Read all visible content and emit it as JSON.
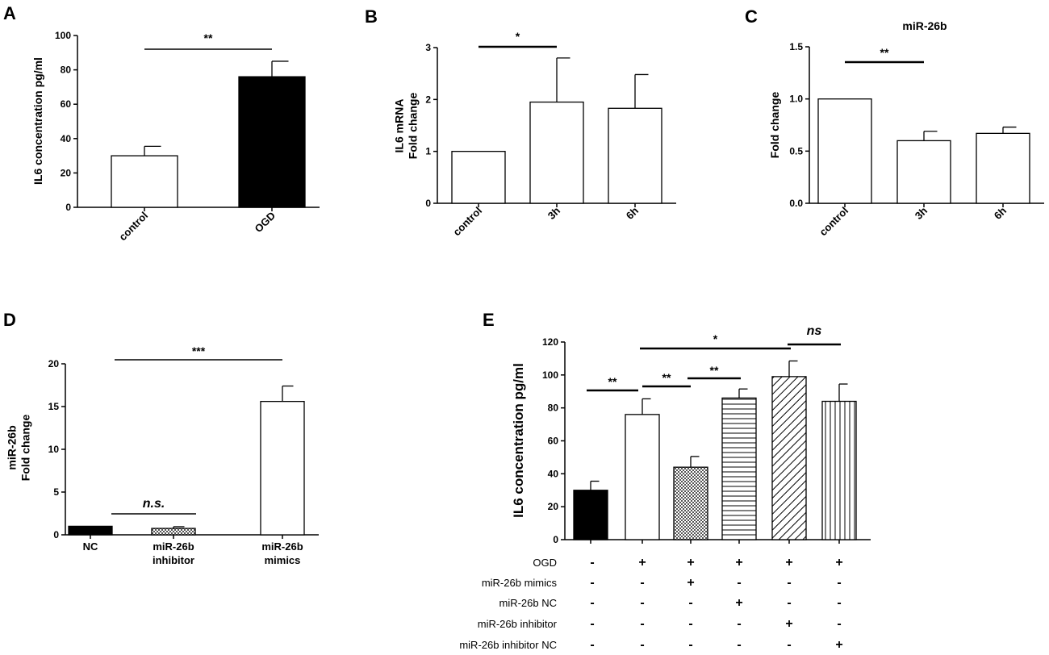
{
  "chart_data": [
    {
      "panel": "A",
      "type": "bar",
      "title": "",
      "ylabel": "IL6 concentration pg/ml",
      "xlabel": "",
      "ylim": [
        0,
        100
      ],
      "yticks": [
        "0",
        "20",
        "40",
        "60",
        "80",
        "100"
      ],
      "categories": [
        "control",
        "OGD"
      ],
      "values": [
        30,
        76
      ],
      "errors": [
        5.5,
        9
      ],
      "fills": [
        "white",
        "black"
      ],
      "significance": [
        {
          "from": 0,
          "to": 1,
          "label": "**"
        }
      ]
    },
    {
      "panel": "B",
      "type": "bar",
      "title": "",
      "ylabel": [
        "IL6 mRNA",
        "Fold change"
      ],
      "xlabel": "",
      "ylim": [
        0,
        3
      ],
      "yticks": [
        "0",
        "1",
        "2",
        "3"
      ],
      "categories": [
        "control",
        "3h",
        "6h"
      ],
      "values": [
        1.0,
        1.95,
        1.83
      ],
      "errors": [
        0,
        0.85,
        0.65
      ],
      "fills": [
        "white",
        "white",
        "white"
      ],
      "significance": [
        {
          "from": 0,
          "to": 1,
          "label": "*"
        }
      ]
    },
    {
      "panel": "C",
      "type": "bar",
      "title": "miR-26b",
      "ylabel": "Fold change",
      "xlabel": "",
      "ylim": [
        0,
        1.5
      ],
      "yticks": [
        "0.0",
        "0.5",
        "1.0",
        "1.5"
      ],
      "categories": [
        "control",
        "3h",
        "6h"
      ],
      "values": [
        1.0,
        0.6,
        0.67
      ],
      "errors": [
        0,
        0.09,
        0.06
      ],
      "fills": [
        "white",
        "white",
        "white"
      ],
      "significance": [
        {
          "from": 0,
          "to": 1,
          "label": "**"
        }
      ]
    },
    {
      "panel": "D",
      "type": "bar",
      "title": "",
      "ylabel": [
        "miR-26b",
        "Fold change"
      ],
      "xlabel": "",
      "ylim": [
        0,
        20
      ],
      "yticks": [
        "0",
        "5",
        "10",
        "15",
        "20"
      ],
      "categories": [
        [
          "NC"
        ],
        [
          "miR-26b",
          "inhibitor"
        ],
        [
          "miR-26b",
          "mimics"
        ]
      ],
      "values": [
        1.0,
        0.75,
        15.6
      ],
      "errors": [
        0,
        0.2,
        1.8
      ],
      "fills": [
        "black",
        "checker",
        "white"
      ],
      "significance": [
        {
          "from": 0,
          "to": 1,
          "label": "n.s.",
          "italic": true
        },
        {
          "from": 0,
          "to": 2,
          "label": "***"
        }
      ]
    },
    {
      "panel": "E",
      "type": "bar",
      "title": "",
      "ylabel": "IL6 concentration pg/ml",
      "xlabel": "",
      "ylim": [
        0,
        120
      ],
      "yticks": [
        "0",
        "20",
        "40",
        "60",
        "80",
        "100",
        "120"
      ],
      "values": [
        30,
        76,
        44,
        86,
        99,
        84
      ],
      "errors": [
        5.5,
        9.5,
        6.5,
        5.5,
        9.5,
        10.5
      ],
      "fills": [
        "black",
        "white",
        "checker",
        "hlines",
        "diag",
        "vlines"
      ],
      "significance": [
        {
          "from": 0,
          "to": 1,
          "label": "**"
        },
        {
          "from": 1,
          "to": 2,
          "label": "**"
        },
        {
          "from": 2,
          "to": 3,
          "label": "**"
        },
        {
          "from": 1,
          "to": 4,
          "label": "*"
        },
        {
          "from": 4,
          "to": 5,
          "label": "ns",
          "italic": true
        }
      ],
      "condition_rows": [
        {
          "label": "OGD",
          "marks": [
            "-",
            "+",
            "+",
            "+",
            "+",
            "+"
          ]
        },
        {
          "label": "miR-26b mimics",
          "marks": [
            "-",
            "-",
            "+",
            "-",
            "-",
            "-"
          ]
        },
        {
          "label": "miR-26b NC",
          "marks": [
            "-",
            "-",
            "-",
            "+",
            "-",
            "-"
          ]
        },
        {
          "label": "miR-26b inhibitor",
          "marks": [
            "-",
            "-",
            "-",
            "-",
            "+",
            "-"
          ]
        },
        {
          "label": "miR-26b inhibitor NC",
          "marks": [
            "-",
            "-",
            "-",
            "-",
            "-",
            "+"
          ]
        }
      ]
    }
  ]
}
